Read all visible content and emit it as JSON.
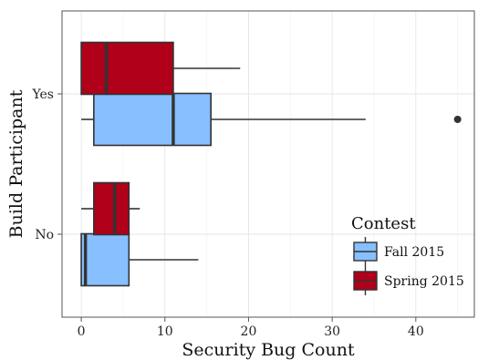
{
  "chart_data": {
    "type": "boxplot",
    "orientation": "horizontal",
    "title": "",
    "xlabel": "Security Bug Count",
    "ylabel": "Build Participant",
    "xlim": [
      -2.3,
      47
    ],
    "x_ticks": [
      0,
      10,
      20,
      30,
      40
    ],
    "categories": [
      "Yes",
      "No"
    ],
    "grid": true,
    "legend": {
      "title": "Contest",
      "placement": "right"
    },
    "series": [
      {
        "name": "Fall 2015",
        "color": "#87bfff",
        "boxes": [
          {
            "category": "Yes",
            "whisker_low": 0,
            "q1": 1.5,
            "median": 11,
            "q3": 15.5,
            "whisker_high": 34,
            "outliers": [
              45
            ]
          },
          {
            "category": "No",
            "whisker_low": 0,
            "q1": 0,
            "median": 0.5,
            "q3": 5.7,
            "whisker_high": 14,
            "outliers": []
          }
        ]
      },
      {
        "name": "Spring 2015",
        "color": "#b0001a",
        "boxes": [
          {
            "category": "Yes",
            "whisker_low": 0,
            "q1": 0,
            "median": 3,
            "q3": 11,
            "whisker_high": 19,
            "outliers": []
          },
          {
            "category": "No",
            "whisker_low": 0,
            "q1": 1.5,
            "median": 4,
            "q3": 5.7,
            "whisker_high": 7,
            "outliers": []
          }
        ]
      }
    ]
  }
}
